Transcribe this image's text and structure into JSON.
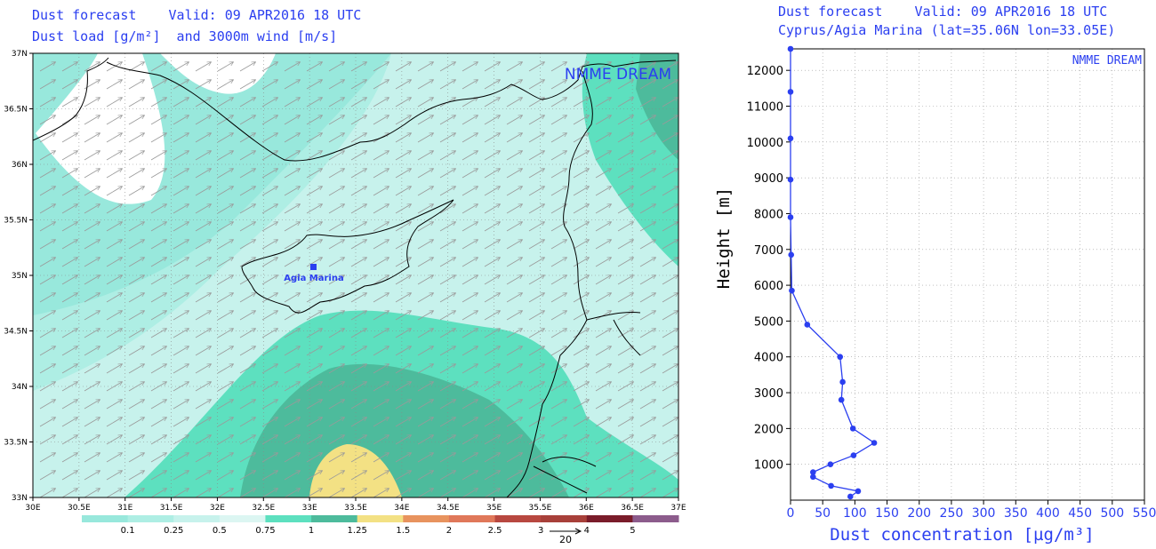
{
  "map": {
    "title_line1": "Dust forecast    Valid: 09 APR2016 18 UTC",
    "title_line2": "Dust load [g/m²]  and 3000m wind [m/s]",
    "brand": "NMME DREAM",
    "station_label": "Agia Marina",
    "lat_labels": [
      "37N",
      "36.5N",
      "36N",
      "35.5N",
      "35N",
      "34.5N",
      "34N",
      "33.5N",
      "33N"
    ],
    "lon_labels": [
      "30E",
      "30.5E",
      "31E",
      "31.5E",
      "32E",
      "32.5E",
      "33E",
      "33.5E",
      "34E",
      "34.5E",
      "35E",
      "35.5E",
      "36E",
      "36.5E",
      "37E"
    ],
    "wind_ref_value": "20",
    "colorbar": {
      "ticks": [
        "0.1",
        "0.25",
        "0.5",
        "0.75",
        "1",
        "1.25",
        "1.5",
        "2",
        "2.5",
        "3",
        "4",
        "5"
      ],
      "colors": [
        "#98e8dc",
        "#aeeee4",
        "#c7f2ec",
        "#dcf6f2",
        "#5de0bf",
        "#4dbb9c",
        "#f3e184",
        "#e8935e",
        "#e0785a",
        "#b84840",
        "#a8403a",
        "#7a1c2a",
        "#8c5c8c"
      ]
    }
  },
  "chart_data": {
    "type": "line",
    "title_line1": "Dust forecast    Valid: 09 APR2016 18 UTC",
    "title_line2": "Cyprus/Agia Marina (lat=35.06N lon=33.05E)",
    "brand": "NMME DREAM",
    "xlabel": "Dust concentration [µg/m³]",
    "ylabel": "Height [m]",
    "xlim": [
      0,
      550
    ],
    "ylim": [
      0,
      12600
    ],
    "x_ticks": [
      "0",
      "50",
      "100",
      "150",
      "200",
      "250",
      "300",
      "350",
      "400",
      "450",
      "500",
      "550"
    ],
    "y_ticks": [
      "1000",
      "2000",
      "3000",
      "4000",
      "5000",
      "6000",
      "7000",
      "8000",
      "9000",
      "10000",
      "11000",
      "12000"
    ],
    "grid": true,
    "series": [
      {
        "color": "#2b3ff0",
        "x": [
          93,
          105,
          63,
          35,
          35,
          62,
          98,
          130,
          97,
          79,
          81,
          77,
          26,
          2,
          1,
          0,
          0,
          0,
          0,
          0
        ],
        "y": [
          100,
          250,
          400,
          650,
          780,
          1000,
          1250,
          1600,
          2000,
          2800,
          3300,
          4000,
          4900,
          5850,
          6850,
          7900,
          8950,
          10100,
          11400,
          12600
        ]
      }
    ]
  }
}
